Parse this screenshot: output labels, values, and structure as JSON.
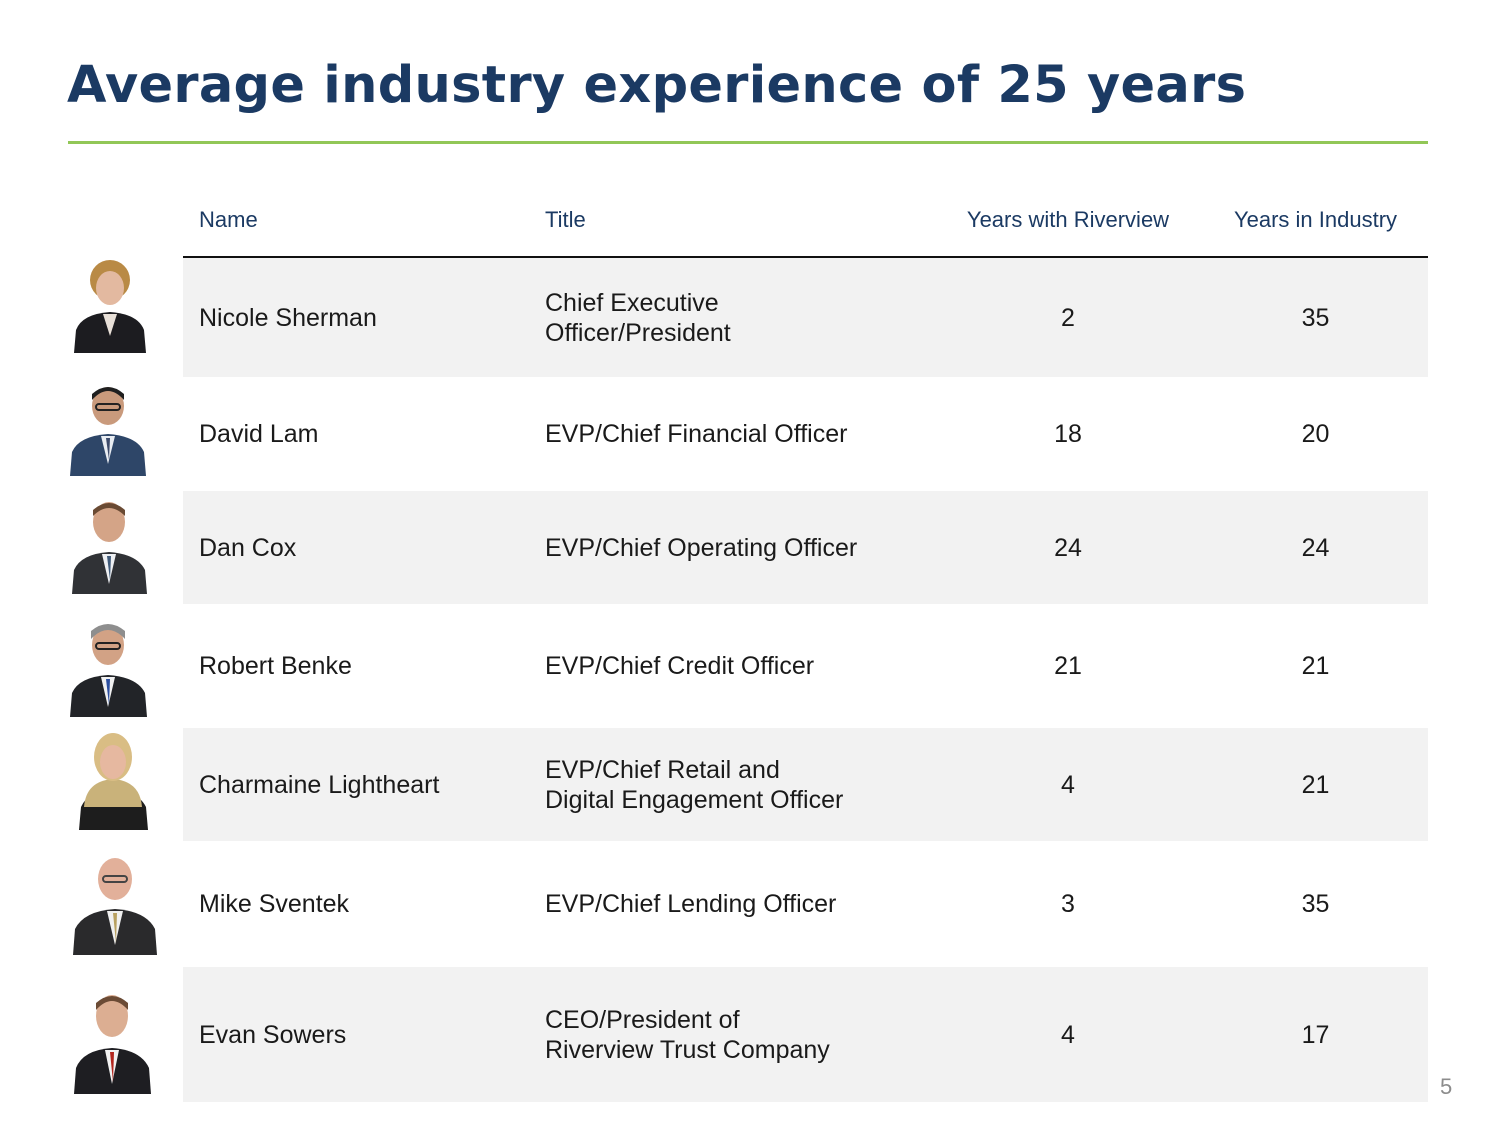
{
  "title": "Average industry experience of 25 years",
  "colors": {
    "title": "#1b3a63",
    "rule": "#92c757",
    "row_shade": "#f2f2f2"
  },
  "table": {
    "headers": {
      "name": "Name",
      "title": "Title",
      "years_with_riverview": "Years with Riverview",
      "years_in_industry": "Years in Industry"
    },
    "rows": [
      {
        "name": "Nicole Sherman",
        "title": "Chief Executive\nOfficer/President",
        "years_with_riverview": "2",
        "years_in_industry": "35"
      },
      {
        "name": "David Lam",
        "title": "EVP/Chief Financial Officer",
        "years_with_riverview": "18",
        "years_in_industry": "20"
      },
      {
        "name": "Dan Cox",
        "title": "EVP/Chief Operating Officer",
        "years_with_riverview": "24",
        "years_in_industry": "24"
      },
      {
        "name": "Robert Benke",
        "title": "EVP/Chief Credit Officer",
        "years_with_riverview": "21",
        "years_in_industry": "21"
      },
      {
        "name": "Charmaine Lightheart",
        "title": "EVP/Chief Retail and\nDigital Engagement Officer",
        "years_with_riverview": "4",
        "years_in_industry": "21"
      },
      {
        "name": "Mike Sventek",
        "title": "EVP/Chief Lending Officer",
        "years_with_riverview": "3",
        "years_in_industry": "35"
      },
      {
        "name": "Evan Sowers",
        "title": "CEO/President of\nRiverview Trust Company",
        "years_with_riverview": "4",
        "years_in_industry": "17"
      }
    ]
  },
  "page_number": "5"
}
